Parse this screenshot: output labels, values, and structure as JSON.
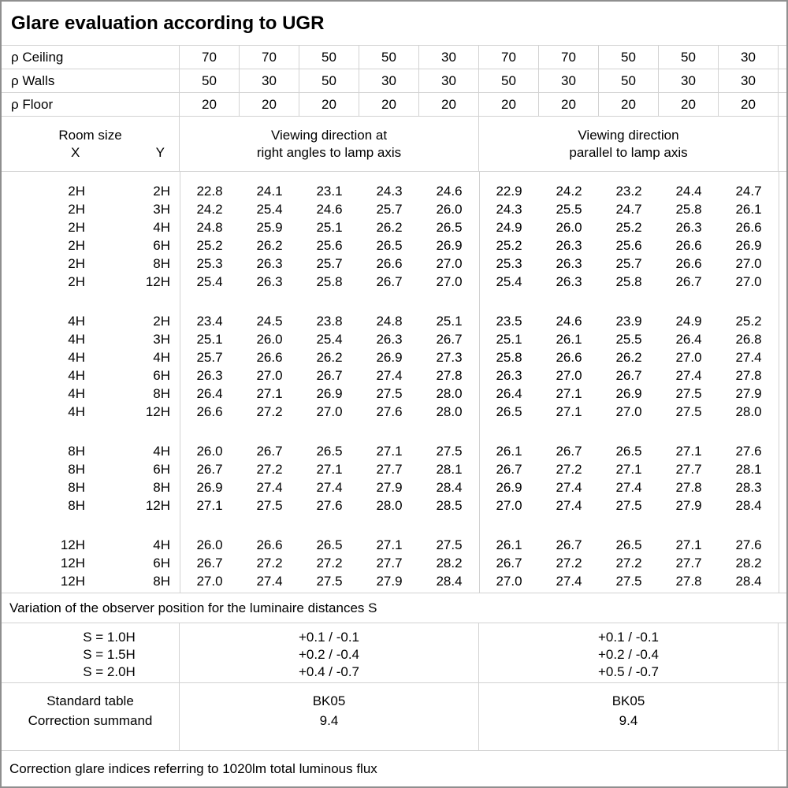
{
  "title": "Glare evaluation according to UGR",
  "colors": {
    "grid_line": "#d2d2d2",
    "outer_border": "#8f8f8f",
    "text": "#000000",
    "background": "#ffffff"
  },
  "reflectance_rows": [
    {
      "label": "ρ Ceiling",
      "values": [
        "70",
        "70",
        "50",
        "50",
        "30",
        "70",
        "70",
        "50",
        "50",
        "30"
      ]
    },
    {
      "label": "ρ Walls",
      "values": [
        "50",
        "30",
        "50",
        "30",
        "30",
        "50",
        "30",
        "50",
        "30",
        "30"
      ]
    },
    {
      "label": "ρ Floor",
      "values": [
        "20",
        "20",
        "20",
        "20",
        "20",
        "20",
        "20",
        "20",
        "20",
        "20"
      ]
    }
  ],
  "room_size": {
    "title": "Room size",
    "x": "X",
    "y": "Y"
  },
  "viewing_headers": {
    "right_angles": {
      "line1": "Viewing direction at",
      "line2": "right angles to lamp axis"
    },
    "parallel": {
      "line1": "Viewing direction",
      "line2": "parallel to lamp axis"
    }
  },
  "ugr_blocks": [
    {
      "rows": [
        {
          "x": "2H",
          "y": "2H",
          "right_angles": [
            "22.8",
            "24.1",
            "23.1",
            "24.3",
            "24.6"
          ],
          "parallel": [
            "22.9",
            "24.2",
            "23.2",
            "24.4",
            "24.7"
          ]
        },
        {
          "x": "2H",
          "y": "3H",
          "right_angles": [
            "24.2",
            "25.4",
            "24.6",
            "25.7",
            "26.0"
          ],
          "parallel": [
            "24.3",
            "25.5",
            "24.7",
            "25.8",
            "26.1"
          ]
        },
        {
          "x": "2H",
          "y": "4H",
          "right_angles": [
            "24.8",
            "25.9",
            "25.1",
            "26.2",
            "26.5"
          ],
          "parallel": [
            "24.9",
            "26.0",
            "25.2",
            "26.3",
            "26.6"
          ]
        },
        {
          "x": "2H",
          "y": "6H",
          "right_angles": [
            "25.2",
            "26.2",
            "25.6",
            "26.5",
            "26.9"
          ],
          "parallel": [
            "25.2",
            "26.3",
            "25.6",
            "26.6",
            "26.9"
          ]
        },
        {
          "x": "2H",
          "y": "8H",
          "right_angles": [
            "25.3",
            "26.3",
            "25.7",
            "26.6",
            "27.0"
          ],
          "parallel": [
            "25.3",
            "26.3",
            "25.7",
            "26.6",
            "27.0"
          ]
        },
        {
          "x": "2H",
          "y": "12H",
          "right_angles": [
            "25.4",
            "26.3",
            "25.8",
            "26.7",
            "27.0"
          ],
          "parallel": [
            "25.4",
            "26.3",
            "25.8",
            "26.7",
            "27.0"
          ]
        }
      ]
    },
    {
      "rows": [
        {
          "x": "4H",
          "y": "2H",
          "right_angles": [
            "23.4",
            "24.5",
            "23.8",
            "24.8",
            "25.1"
          ],
          "parallel": [
            "23.5",
            "24.6",
            "23.9",
            "24.9",
            "25.2"
          ]
        },
        {
          "x": "4H",
          "y": "3H",
          "right_angles": [
            "25.1",
            "26.0",
            "25.4",
            "26.3",
            "26.7"
          ],
          "parallel": [
            "25.1",
            "26.1",
            "25.5",
            "26.4",
            "26.8"
          ]
        },
        {
          "x": "4H",
          "y": "4H",
          "right_angles": [
            "25.7",
            "26.6",
            "26.2",
            "26.9",
            "27.3"
          ],
          "parallel": [
            "25.8",
            "26.6",
            "26.2",
            "27.0",
            "27.4"
          ]
        },
        {
          "x": "4H",
          "y": "6H",
          "right_angles": [
            "26.3",
            "27.0",
            "26.7",
            "27.4",
            "27.8"
          ],
          "parallel": [
            "26.3",
            "27.0",
            "26.7",
            "27.4",
            "27.8"
          ]
        },
        {
          "x": "4H",
          "y": "8H",
          "right_angles": [
            "26.4",
            "27.1",
            "26.9",
            "27.5",
            "28.0"
          ],
          "parallel": [
            "26.4",
            "27.1",
            "26.9",
            "27.5",
            "27.9"
          ]
        },
        {
          "x": "4H",
          "y": "12H",
          "right_angles": [
            "26.6",
            "27.2",
            "27.0",
            "27.6",
            "28.0"
          ],
          "parallel": [
            "26.5",
            "27.1",
            "27.0",
            "27.5",
            "28.0"
          ]
        }
      ]
    },
    {
      "rows": [
        {
          "x": "8H",
          "y": "4H",
          "right_angles": [
            "26.0",
            "26.7",
            "26.5",
            "27.1",
            "27.5"
          ],
          "parallel": [
            "26.1",
            "26.7",
            "26.5",
            "27.1",
            "27.6"
          ]
        },
        {
          "x": "8H",
          "y": "6H",
          "right_angles": [
            "26.7",
            "27.2",
            "27.1",
            "27.7",
            "28.1"
          ],
          "parallel": [
            "26.7",
            "27.2",
            "27.1",
            "27.7",
            "28.1"
          ]
        },
        {
          "x": "8H",
          "y": "8H",
          "right_angles": [
            "26.9",
            "27.4",
            "27.4",
            "27.9",
            "28.4"
          ],
          "parallel": [
            "26.9",
            "27.4",
            "27.4",
            "27.8",
            "28.3"
          ]
        },
        {
          "x": "8H",
          "y": "12H",
          "right_angles": [
            "27.1",
            "27.5",
            "27.6",
            "28.0",
            "28.5"
          ],
          "parallel": [
            "27.0",
            "27.4",
            "27.5",
            "27.9",
            "28.4"
          ]
        }
      ]
    },
    {
      "rows": [
        {
          "x": "12H",
          "y": "4H",
          "right_angles": [
            "26.0",
            "26.6",
            "26.5",
            "27.1",
            "27.5"
          ],
          "parallel": [
            "26.1",
            "26.7",
            "26.5",
            "27.1",
            "27.6"
          ]
        },
        {
          "x": "12H",
          "y": "6H",
          "right_angles": [
            "26.7",
            "27.2",
            "27.2",
            "27.7",
            "28.2"
          ],
          "parallel": [
            "26.7",
            "27.2",
            "27.2",
            "27.7",
            "28.2"
          ]
        },
        {
          "x": "12H",
          "y": "8H",
          "right_angles": [
            "27.0",
            "27.4",
            "27.5",
            "27.9",
            "28.4"
          ],
          "parallel": [
            "27.0",
            "27.4",
            "27.5",
            "27.8",
            "28.4"
          ]
        }
      ]
    }
  ],
  "s_variation": {
    "note": "Variation of the observer position for the luminaire distances S",
    "rows": [
      {
        "label": "S = 1.0H",
        "right_angles": "+0.1 / -0.1",
        "parallel": "+0.1 / -0.1"
      },
      {
        "label": "S = 1.5H",
        "right_angles": "+0.2 / -0.4",
        "parallel": "+0.2 / -0.4"
      },
      {
        "label": "S = 2.0H",
        "right_angles": "+0.4 / -0.7",
        "parallel": "+0.5 / -0.7"
      }
    ]
  },
  "standard": {
    "rows": [
      {
        "label": "Standard table",
        "right_angles": "BK05",
        "parallel": "BK05"
      },
      {
        "label": "Correction summand",
        "right_angles": "9.4",
        "parallel": "9.4"
      }
    ]
  },
  "footer_note": "Correction glare indices referring to 1020lm total luminous flux"
}
